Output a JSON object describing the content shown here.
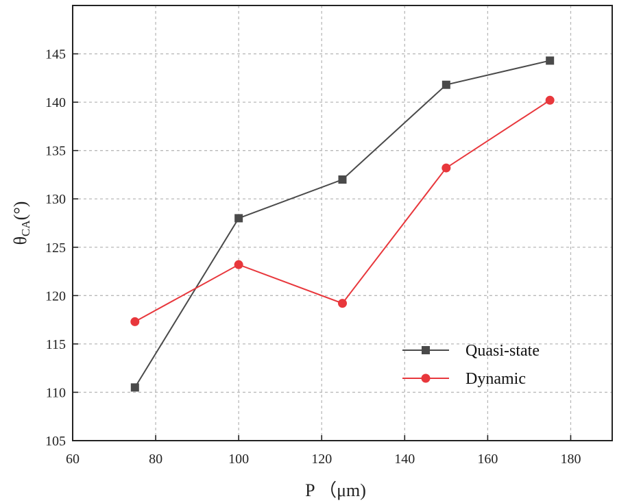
{
  "chart_data": {
    "type": "line",
    "title": "",
    "xlabel": "P （μm)",
    "ylabel": {
      "main": "θ",
      "sub": "CA",
      "unit": "(°)"
    },
    "xlim": [
      60,
      190
    ],
    "ylim": [
      105,
      150
    ],
    "xticks": [
      60,
      80,
      100,
      120,
      140,
      160,
      180
    ],
    "yticks": [
      105,
      110,
      115,
      120,
      125,
      130,
      135,
      140,
      145
    ],
    "grid": true,
    "legend_position": "bottom-right",
    "series": [
      {
        "name": "Quasi-state",
        "color": "#4a4a4a",
        "marker": "square",
        "x": [
          75,
          100,
          125,
          150,
          175
        ],
        "y": [
          110.5,
          128.0,
          132.0,
          141.8,
          144.3
        ]
      },
      {
        "name": "Dynamic",
        "color": "#e8373c",
        "marker": "circle",
        "x": [
          75,
          100,
          125,
          150,
          175
        ],
        "y": [
          117.3,
          123.2,
          119.2,
          133.2,
          140.2
        ]
      }
    ]
  }
}
